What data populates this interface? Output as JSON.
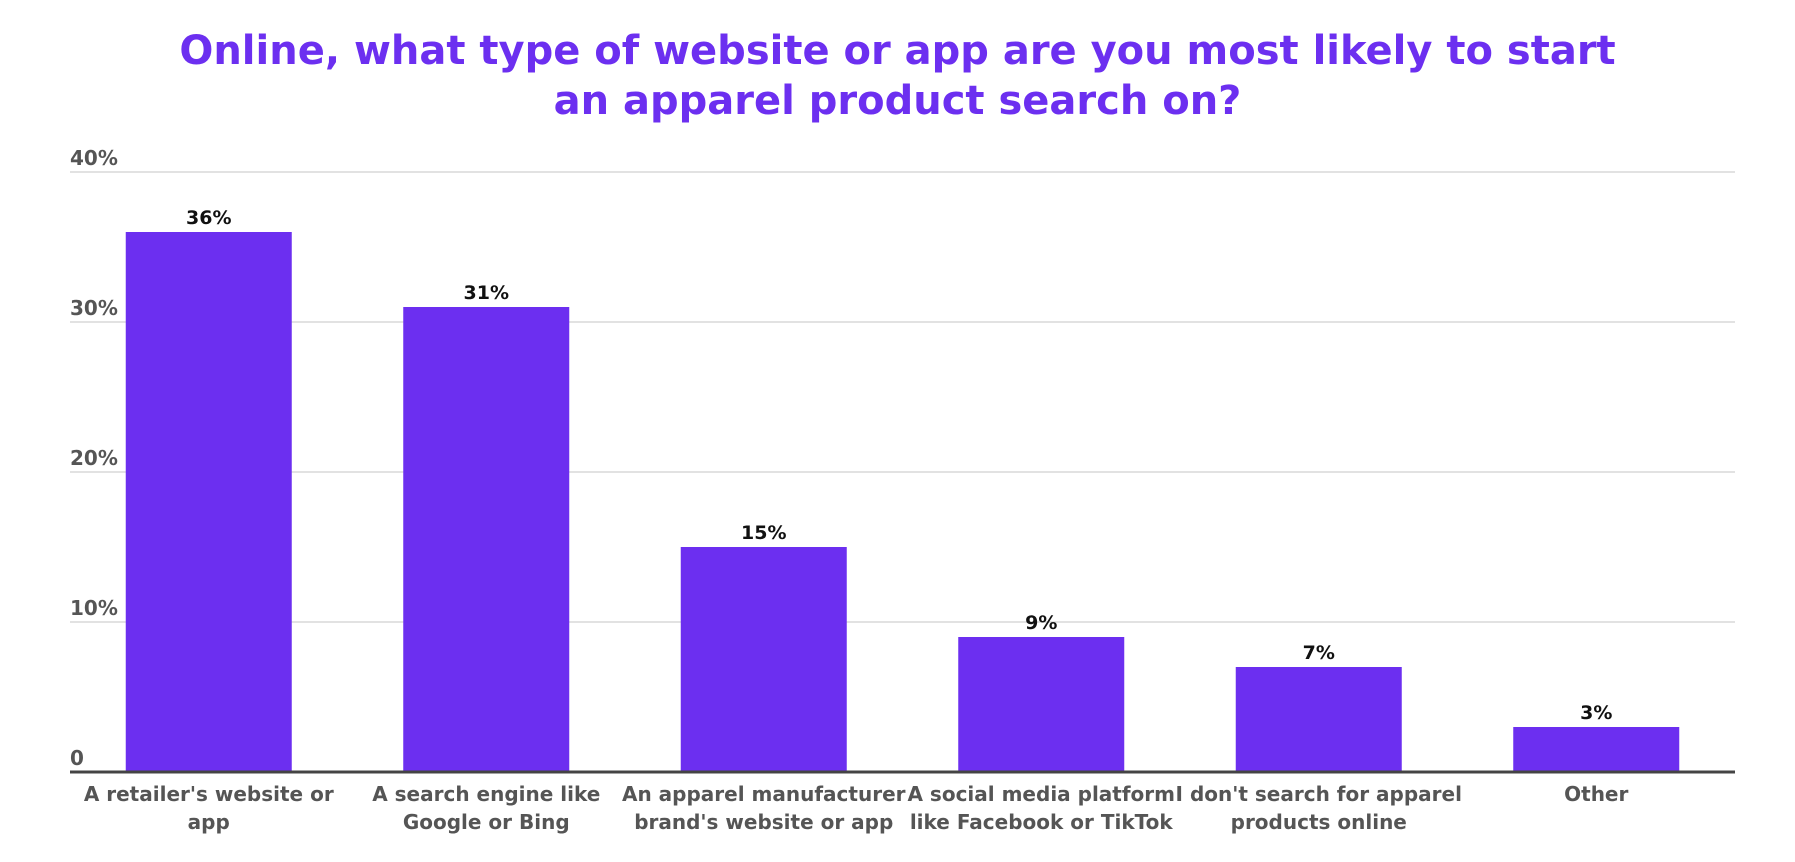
{
  "chart_data": {
    "type": "bar",
    "title_lines": [
      "Online, what type of website or app are you most likely to start",
      "an apparel product search on?"
    ],
    "categories": [
      [
        "A retailer's website or",
        "app"
      ],
      [
        "A search engine like",
        "Google or Bing"
      ],
      [
        "An apparel manufacturer",
        "brand's website or app"
      ],
      [
        "A social media platform",
        "like Facebook or TikTok"
      ],
      [
        "I don't search for apparel",
        "products online"
      ],
      [
        "Other"
      ]
    ],
    "values": [
      36,
      31,
      15,
      9,
      7,
      3
    ],
    "value_labels": [
      "36%",
      "31%",
      "15%",
      "9%",
      "7%",
      "3%"
    ],
    "yticks": [
      0,
      10,
      20,
      30,
      40
    ],
    "ytick_labels": [
      "0",
      "10%",
      "20%",
      "30%",
      "40%"
    ],
    "ylim": [
      0,
      40
    ],
    "grid": true,
    "bar_color": "#6c2ff0",
    "title_color": "#6c2ff0",
    "grid_color": "#d9d9d9",
    "axis_color": "#444444"
  }
}
